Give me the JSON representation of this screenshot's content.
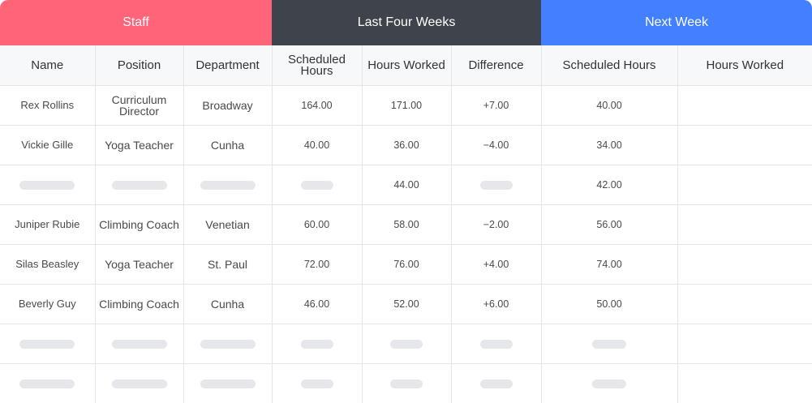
{
  "groups": {
    "staff": "Staff",
    "last_four_weeks": "Last Four Weeks",
    "next_week": "Next Week"
  },
  "columns": {
    "name": "Name",
    "position": "Position",
    "department": "Department",
    "scheduled_hours_1": "Scheduled Hours",
    "hours_worked_1": "Hours Worked",
    "difference": "Difference",
    "scheduled_hours_2": "Scheduled Hours",
    "hours_worked_2": "Hours Worked"
  },
  "rows": [
    {
      "name": "Rex Rollins",
      "position": "Curriculum Director",
      "department": "Broadway",
      "scheduled": "164.00",
      "worked": "171.00",
      "difference": "+7.00",
      "next_scheduled": "40.00",
      "next_worked": ""
    },
    {
      "name": "Vickie Gille",
      "position": "Yoga Teacher",
      "department": "Cunha",
      "scheduled": "40.00",
      "worked": "36.00",
      "difference": "−4.00",
      "next_scheduled": "34.00",
      "next_worked": ""
    },
    {
      "worked": "44.00",
      "next_scheduled": "42.00"
    },
    {
      "name": "Juniper Rubie",
      "position": "Climbing Coach",
      "department": "Venetian",
      "scheduled": "60.00",
      "worked": "58.00",
      "difference": "−2.00",
      "next_scheduled": "56.00",
      "next_worked": ""
    },
    {
      "name": "Silas Beasley",
      "position": "Yoga Teacher",
      "department": "St. Paul",
      "scheduled": "72.00",
      "worked": "76.00",
      "difference": "+4.00",
      "next_scheduled": "74.00",
      "next_worked": ""
    },
    {
      "name": "Beverly Guy",
      "position": "Climbing Coach",
      "department": "Cunha",
      "scheduled": "46.00",
      "worked": "52.00",
      "difference": "+6.00",
      "next_scheduled": "50.00",
      "next_worked": ""
    }
  ],
  "colors": {
    "staff": "#ff6478",
    "last_four_weeks": "#3f444c",
    "next_week": "#4280ff",
    "skeleton": "#e6e7ea"
  }
}
